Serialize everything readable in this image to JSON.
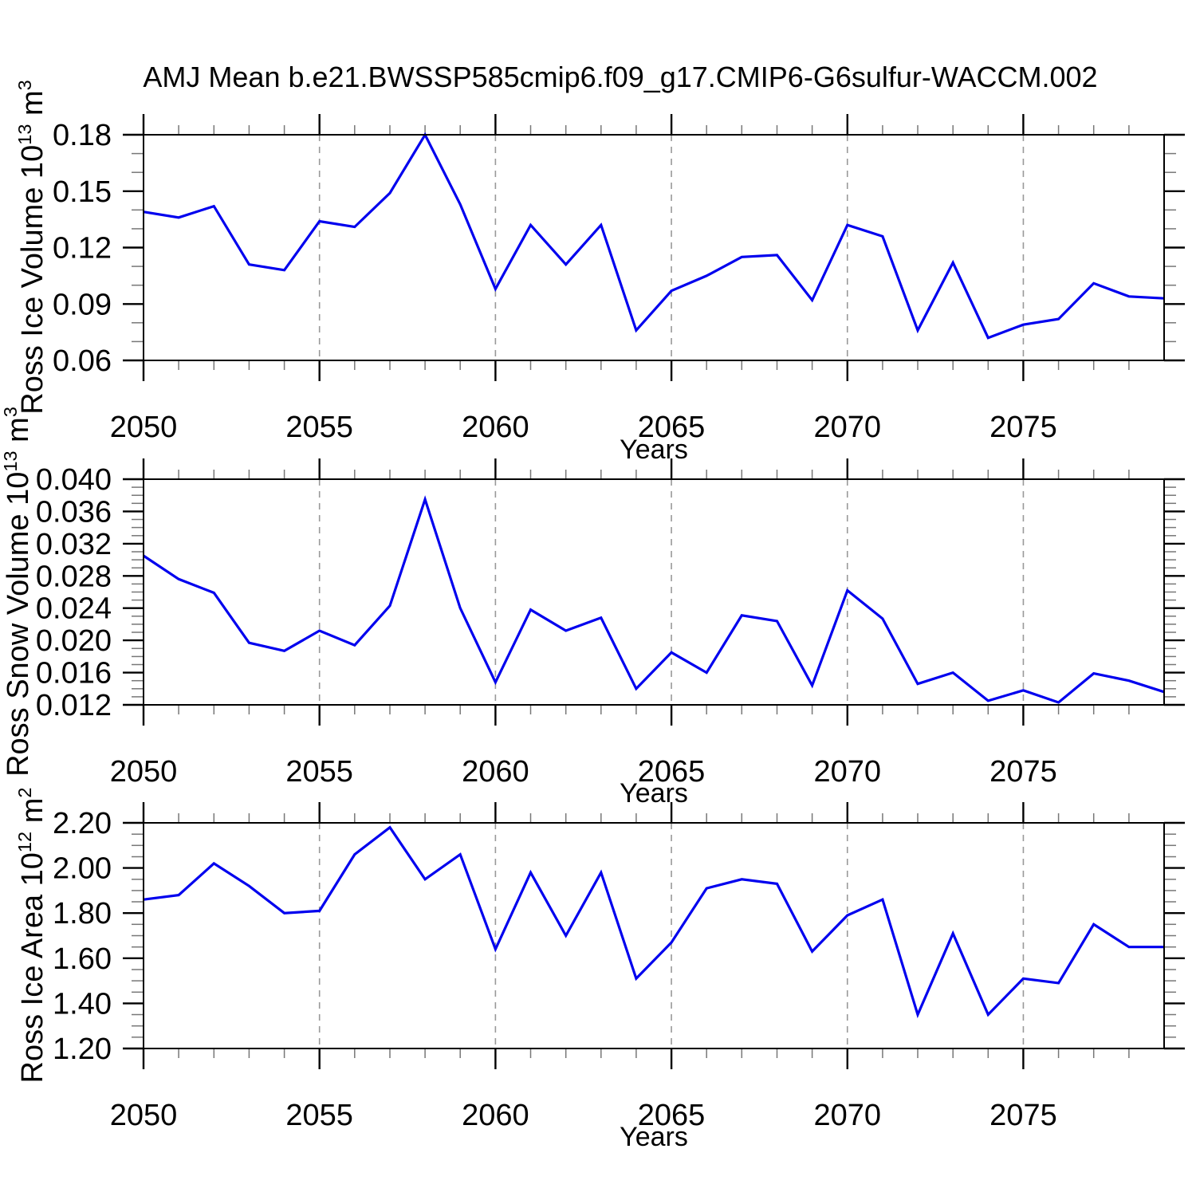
{
  "title": "AMJ Mean b.e21.BWSSP585cmip6.f09_g17.CMIP6-G6sulfur-WACCM.002",
  "colors": {
    "line": "#0000ee",
    "frame": "#000000",
    "major_tick": "#000000",
    "minor_tick": "#777777",
    "grid": "#999999",
    "background": "#ffffff",
    "text": "#000000"
  },
  "x_axis": {
    "label": "Years",
    "start": 2050,
    "end": 2079,
    "years": [
      2050,
      2051,
      2052,
      2053,
      2054,
      2055,
      2056,
      2057,
      2058,
      2059,
      2060,
      2061,
      2062,
      2063,
      2064,
      2065,
      2066,
      2067,
      2068,
      2069,
      2070,
      2071,
      2072,
      2073,
      2074,
      2075,
      2076,
      2077,
      2078,
      2079
    ],
    "major_ticks": [
      2050,
      2055,
      2060,
      2065,
      2070,
      2075
    ],
    "major_tick_labels": [
      "2050",
      "2055",
      "2060",
      "2065",
      "2070",
      "2075"
    ],
    "grid_years": [
      2055,
      2060,
      2065,
      2070,
      2075
    ]
  },
  "chart_data": [
    {
      "type": "line",
      "ylabel": "Ross Ice Volume 10^13 m^3",
      "ylabel_parts": {
        "pre": "Ross Ice Volume 10",
        "sup1": "13",
        "mid": " m",
        "sup2": "3"
      },
      "x": [
        2050,
        2051,
        2052,
        2053,
        2054,
        2055,
        2056,
        2057,
        2058,
        2059,
        2060,
        2061,
        2062,
        2063,
        2064,
        2065,
        2066,
        2067,
        2068,
        2069,
        2070,
        2071,
        2072,
        2073,
        2074,
        2075,
        2076,
        2077,
        2078,
        2079
      ],
      "values": [
        0.139,
        0.136,
        0.142,
        0.111,
        0.108,
        0.134,
        0.131,
        0.149,
        0.18,
        0.143,
        0.098,
        0.132,
        0.111,
        0.132,
        0.076,
        0.097,
        0.105,
        0.115,
        0.116,
        0.092,
        0.132,
        0.126,
        0.076,
        0.112,
        0.072,
        0.079,
        0.082,
        0.101,
        0.094,
        0.093
      ],
      "ylim": [
        0.06,
        0.18
      ],
      "ytick_values": [
        0.06,
        0.09,
        0.12,
        0.15,
        0.18
      ],
      "ytick_labels": [
        "0.06",
        "0.09",
        "0.12",
        "0.15",
        "0.18"
      ],
      "yminor_step": 0.01,
      "xlabel": "Years",
      "grid": "vertical-dashed",
      "legend": "none"
    },
    {
      "type": "line",
      "ylabel": "Ross Snow Volume 10^13 m^3",
      "ylabel_parts": {
        "pre": "Ross Snow Volume 10",
        "sup1": "13",
        "mid": " m",
        "sup2": "3"
      },
      "x": [
        2050,
        2051,
        2052,
        2053,
        2054,
        2055,
        2056,
        2057,
        2058,
        2059,
        2060,
        2061,
        2062,
        2063,
        2064,
        2065,
        2066,
        2067,
        2068,
        2069,
        2070,
        2071,
        2072,
        2073,
        2074,
        2075,
        2076,
        2077,
        2078,
        2079
      ],
      "values": [
        0.0305,
        0.0276,
        0.0259,
        0.0197,
        0.0187,
        0.0212,
        0.0194,
        0.0243,
        0.0375,
        0.024,
        0.0148,
        0.0238,
        0.0212,
        0.0228,
        0.014,
        0.0185,
        0.016,
        0.0231,
        0.0224,
        0.0144,
        0.0262,
        0.0227,
        0.0146,
        0.016,
        0.0125,
        0.0138,
        0.0123,
        0.0159,
        0.015,
        0.0136
      ],
      "ylim": [
        0.012,
        0.04
      ],
      "ytick_values": [
        0.012,
        0.016,
        0.02,
        0.024,
        0.028,
        0.032,
        0.036,
        0.04
      ],
      "ytick_labels": [
        "0.012",
        "0.016",
        "0.020",
        "0.024",
        "0.028",
        "0.032",
        "0.036",
        "0.040"
      ],
      "yminor_step": 0.001,
      "xlabel": "Years",
      "grid": "vertical-dashed",
      "legend": "none"
    },
    {
      "type": "line",
      "ylabel": "Ross Ice Area 10^12 m^2",
      "ylabel_parts": {
        "pre": "Ross Ice Area 10",
        "sup1": "12",
        "mid": " m",
        "sup2": "2"
      },
      "x": [
        2050,
        2051,
        2052,
        2053,
        2054,
        2055,
        2056,
        2057,
        2058,
        2059,
        2060,
        2061,
        2062,
        2063,
        2064,
        2065,
        2066,
        2067,
        2068,
        2069,
        2070,
        2071,
        2072,
        2073,
        2074,
        2075,
        2076,
        2077,
        2078,
        2079
      ],
      "values": [
        1.86,
        1.88,
        2.02,
        1.92,
        1.8,
        1.81,
        2.06,
        2.18,
        1.95,
        2.06,
        1.64,
        1.98,
        1.7,
        1.98,
        1.51,
        1.67,
        1.91,
        1.95,
        1.93,
        1.63,
        1.79,
        1.86,
        1.35,
        1.71,
        1.35,
        1.51,
        1.49,
        1.75,
        1.65,
        1.65
      ],
      "ylim": [
        1.2,
        2.2
      ],
      "ytick_values": [
        1.2,
        1.4,
        1.6,
        1.8,
        2.0,
        2.2
      ],
      "ytick_labels": [
        "1.20",
        "1.40",
        "1.60",
        "1.80",
        "2.00",
        "2.20"
      ],
      "yminor_step": 0.05,
      "xlabel": "Years",
      "grid": "vertical-dashed",
      "legend": "none"
    }
  ]
}
